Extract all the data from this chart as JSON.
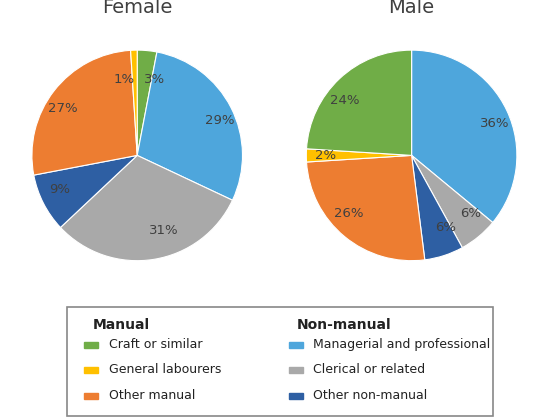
{
  "female_title": "Female",
  "male_title": "Male",
  "female_vals_ordered": [
    3,
    29,
    31,
    9,
    27,
    1
  ],
  "male_vals_ordered": [
    36,
    6,
    6,
    26,
    2,
    24
  ],
  "female_colors": [
    "#70AD47",
    "#4EA6DC",
    "#A9A9A9",
    "#2E5FA3",
    "#ED7D31",
    "#FFC000"
  ],
  "male_colors": [
    "#4EA6DC",
    "#A9A9A9",
    "#2E5FA3",
    "#ED7D31",
    "#FFC000",
    "#70AD47"
  ],
  "female_labels": [
    "3%",
    "29%",
    "31%",
    "9%",
    "27%",
    "1%"
  ],
  "male_labels": [
    "36%",
    "6%",
    "6%",
    "26%",
    "2%",
    "24%"
  ],
  "legend_manual_label": "Manual",
  "legend_nonmanual_label": "Non-manual",
  "legend_items_left": [
    {
      "label": "Craft or similar",
      "color": "#70AD47"
    },
    {
      "label": "General labourers",
      "color": "#FFC000"
    },
    {
      "label": "Other manual",
      "color": "#ED7D31"
    }
  ],
  "legend_items_right": [
    {
      "label": "Managerial and professional",
      "color": "#4EA6DC"
    },
    {
      "label": "Clerical or related",
      "color": "#A9A9A9"
    },
    {
      "label": "Other non-manual",
      "color": "#2E5FA3"
    }
  ],
  "bg_color": "#FFFFFF",
  "title_fontsize": 14,
  "label_fontsize": 9.5,
  "legend_fontsize": 9
}
